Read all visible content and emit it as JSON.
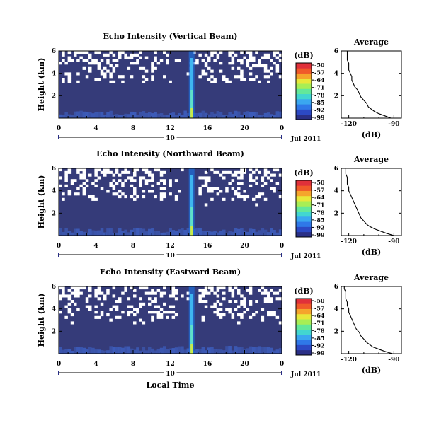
{
  "figure": {
    "xlabel": "Local Time",
    "date_day": "10",
    "date_label": "Jul 2011"
  },
  "colors": {
    "background_echo": "#353b79",
    "no_data": "#ffffff",
    "spike": "#1e6fd8",
    "ground": "#3d5fc0"
  },
  "chart_data": [
    {
      "type": "heatmap",
      "title": "Echo Intensity (Vertical Beam)",
      "ylabel": "Height (km)",
      "x_ticks": [
        "0",
        "4",
        "8",
        "12",
        "16",
        "20",
        "0"
      ],
      "y_ticks": [
        "6",
        "4",
        "2"
      ],
      "xlim": [
        0,
        24
      ],
      "ylim": [
        0,
        6
      ],
      "colorbar": {
        "unit": "(dB)",
        "labels": [
          "-50",
          "-57",
          "-64",
          "-71",
          "-78",
          "-85",
          "-92",
          "-99"
        ]
      },
      "profile": {
        "title": "Average",
        "xlabel": "(dB)",
        "x_ticks": [
          "-120",
          "-90"
        ],
        "y_ticks": [
          "6",
          "4",
          "2"
        ],
        "xlim": [
          -125,
          -85
        ],
        "ylim": [
          0,
          6
        ],
        "height": [
          0.0,
          0.2,
          0.4,
          0.6,
          0.8,
          1.0,
          1.3,
          1.6,
          1.9,
          2.2,
          2.5,
          2.8,
          3.1,
          3.4,
          3.7,
          4.0,
          4.3,
          4.6,
          4.9,
          5.2,
          5.5,
          5.8,
          6.0
        ],
        "db": [
          -92,
          -96,
          -100,
          -103,
          -105,
          -107,
          -108,
          -110,
          -112,
          -113,
          -114,
          -116,
          -117,
          -118,
          -118,
          -119,
          -120,
          -120,
          -120,
          -121,
          -121,
          -121,
          -121
        ]
      }
    },
    {
      "type": "heatmap",
      "title": "Echo Intensity (Northward Beam)",
      "ylabel": "Height (km)",
      "x_ticks": [
        "0",
        "4",
        "8",
        "12",
        "16",
        "20",
        "0"
      ],
      "y_ticks": [
        "6",
        "4",
        "2"
      ],
      "xlim": [
        0,
        24
      ],
      "ylim": [
        0,
        6
      ],
      "colorbar": {
        "unit": "(dB)",
        "labels": [
          "-50",
          "-57",
          "-64",
          "-71",
          "-78",
          "-85",
          "-92",
          "-99"
        ]
      },
      "profile": {
        "title": "Average",
        "xlabel": "(dB)",
        "x_ticks": [
          "-120",
          "-90"
        ],
        "y_ticks": [
          "6",
          "4",
          "2"
        ],
        "xlim": [
          -125,
          -85
        ],
        "ylim": [
          0,
          6
        ],
        "height": [
          0.0,
          0.2,
          0.4,
          0.6,
          0.8,
          1.0,
          1.3,
          1.6,
          1.9,
          2.2,
          2.5,
          2.8,
          3.1,
          3.4,
          3.7,
          4.0,
          4.3,
          4.6,
          4.9,
          5.2,
          5.5,
          5.8,
          6.0
        ],
        "db": [
          -90,
          -95,
          -99,
          -103,
          -106,
          -108,
          -110,
          -112,
          -113,
          -114,
          -115,
          -116,
          -117,
          -118,
          -119,
          -120,
          -120,
          -121,
          -121,
          -121,
          -122,
          -122,
          -122
        ]
      }
    },
    {
      "type": "heatmap",
      "title": "Echo Intensity (Eastward Beam)",
      "ylabel": "Height (km)",
      "x_ticks": [
        "0",
        "4",
        "8",
        "12",
        "16",
        "20",
        "0"
      ],
      "y_ticks": [
        "6",
        "4",
        "2"
      ],
      "xlim": [
        0,
        24
      ],
      "ylim": [
        0,
        6
      ],
      "colorbar": {
        "unit": "(dB)",
        "labels": [
          "-50",
          "-57",
          "-64",
          "-71",
          "-78",
          "-85",
          "-92",
          "-99"
        ]
      },
      "profile": {
        "title": "Average",
        "xlabel": "(dB)",
        "x_ticks": [
          "-120",
          "-90"
        ],
        "y_ticks": [
          "6",
          "4",
          "2"
        ],
        "xlim": [
          -125,
          -85
        ],
        "ylim": [
          0,
          6
        ],
        "height": [
          0.0,
          0.2,
          0.4,
          0.6,
          0.8,
          1.0,
          1.3,
          1.6,
          1.9,
          2.2,
          2.5,
          2.8,
          3.1,
          3.4,
          3.7,
          4.0,
          4.3,
          4.6,
          4.9,
          5.2,
          5.5,
          5.8,
          6.0
        ],
        "db": [
          -91,
          -96,
          -100,
          -104,
          -106,
          -108,
          -110,
          -112,
          -113,
          -115,
          -116,
          -117,
          -118,
          -119,
          -120,
          -120,
          -121,
          -121,
          -122,
          -122,
          -122,
          -123,
          -123
        ]
      }
    }
  ]
}
